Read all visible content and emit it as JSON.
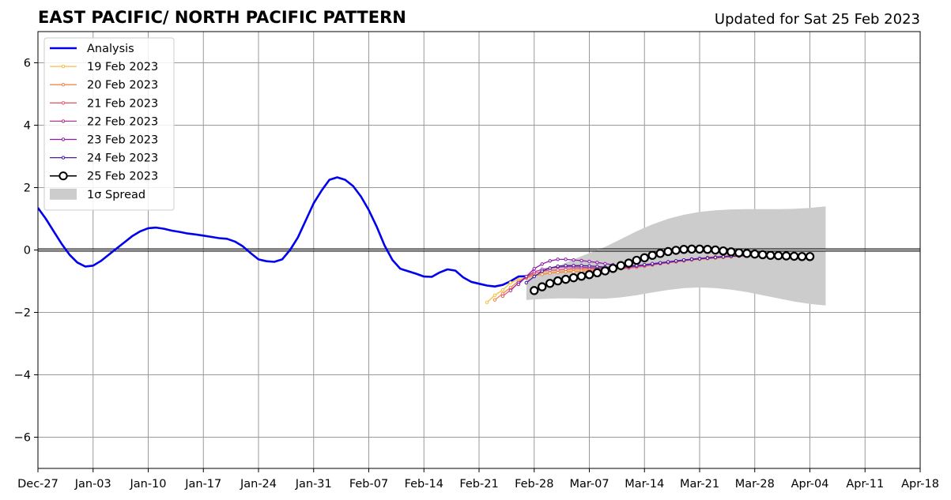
{
  "chart_data": {
    "type": "line",
    "title": "EAST PACIFIC/ NORTH PACIFIC PATTERN",
    "subtitle": "Updated for Sat 25 Feb 2023",
    "xlabel": "",
    "ylabel": "",
    "xlim": [
      "2022-12-27",
      "2023-04-18"
    ],
    "ylim": [
      -7,
      7
    ],
    "grid": true,
    "legend_position": "top-left",
    "x_ticks": [
      {
        "date": "2022-12-27",
        "label": "Dec-27"
      },
      {
        "date": "2023-01-03",
        "label": "Jan-03"
      },
      {
        "date": "2023-01-10",
        "label": "Jan-10"
      },
      {
        "date": "2023-01-17",
        "label": "Jan-17"
      },
      {
        "date": "2023-01-24",
        "label": "Jan-24"
      },
      {
        "date": "2023-01-31",
        "label": "Jan-31"
      },
      {
        "date": "2023-02-07",
        "label": "Feb-07"
      },
      {
        "date": "2023-02-14",
        "label": "Feb-14"
      },
      {
        "date": "2023-02-21",
        "label": "Feb-21"
      },
      {
        "date": "2023-02-28",
        "label": "Feb-28"
      },
      {
        "date": "2023-03-07",
        "label": "Mar-07"
      },
      {
        "date": "2023-03-14",
        "label": "Mar-14"
      },
      {
        "date": "2023-03-21",
        "label": "Mar-21"
      },
      {
        "date": "2023-03-28",
        "label": "Mar-28"
      },
      {
        "date": "2023-04-04",
        "label": "Apr-04"
      },
      {
        "date": "2023-04-11",
        "label": "Apr-11"
      },
      {
        "date": "2023-04-18",
        "label": "Apr-18"
      }
    ],
    "y_ticks": [
      {
        "value": -6,
        "label": "−6"
      },
      {
        "value": -4,
        "label": "−4"
      },
      {
        "value": -2,
        "label": "−2"
      },
      {
        "value": 0,
        "label": "0"
      },
      {
        "value": 2,
        "label": "2"
      },
      {
        "value": 4,
        "label": "4"
      },
      {
        "value": 6,
        "label": "6"
      }
    ],
    "analysis": {
      "name": "Analysis",
      "color": "#0000ee",
      "points": [
        [
          "2022-12-27",
          1.35
        ],
        [
          "2022-12-28",
          1.0
        ],
        [
          "2022-12-29",
          0.6
        ],
        [
          "2022-12-30",
          0.2
        ],
        [
          "2022-12-31",
          -0.15
        ],
        [
          "2023-01-01",
          -0.4
        ],
        [
          "2023-01-02",
          -0.53
        ],
        [
          "2023-01-03",
          -0.5
        ],
        [
          "2023-01-04",
          -0.35
        ],
        [
          "2023-01-05",
          -0.15
        ],
        [
          "2023-01-06",
          0.05
        ],
        [
          "2023-01-07",
          0.25
        ],
        [
          "2023-01-08",
          0.45
        ],
        [
          "2023-01-09",
          0.6
        ],
        [
          "2023-01-10",
          0.7
        ],
        [
          "2023-01-11",
          0.72
        ],
        [
          "2023-01-12",
          0.68
        ],
        [
          "2023-01-13",
          0.62
        ],
        [
          "2023-01-14",
          0.58
        ],
        [
          "2023-01-15",
          0.53
        ],
        [
          "2023-01-16",
          0.5
        ],
        [
          "2023-01-17",
          0.46
        ],
        [
          "2023-01-18",
          0.42
        ],
        [
          "2023-01-19",
          0.38
        ],
        [
          "2023-01-20",
          0.36
        ],
        [
          "2023-01-21",
          0.27
        ],
        [
          "2023-01-22",
          0.12
        ],
        [
          "2023-01-23",
          -0.1
        ],
        [
          "2023-01-24",
          -0.3
        ],
        [
          "2023-01-25",
          -0.36
        ],
        [
          "2023-01-26",
          -0.38
        ],
        [
          "2023-01-27",
          -0.3
        ],
        [
          "2023-01-28",
          0.0
        ],
        [
          "2023-01-29",
          0.4
        ],
        [
          "2023-01-30",
          0.95
        ],
        [
          "2023-01-31",
          1.5
        ],
        [
          "2023-02-01",
          1.9
        ],
        [
          "2023-02-02",
          2.25
        ],
        [
          "2023-02-03",
          2.33
        ],
        [
          "2023-02-04",
          2.25
        ],
        [
          "2023-02-05",
          2.05
        ],
        [
          "2023-02-06",
          1.72
        ],
        [
          "2023-02-07",
          1.28
        ],
        [
          "2023-02-08",
          0.75
        ],
        [
          "2023-02-09",
          0.15
        ],
        [
          "2023-02-10",
          -0.32
        ],
        [
          "2023-02-11",
          -0.6
        ],
        [
          "2023-02-12",
          -0.68
        ],
        [
          "2023-02-13",
          -0.76
        ],
        [
          "2023-02-14",
          -0.85
        ],
        [
          "2023-02-15",
          -0.86
        ],
        [
          "2023-02-16",
          -0.72
        ],
        [
          "2023-02-17",
          -0.62
        ],
        [
          "2023-02-18",
          -0.66
        ],
        [
          "2023-02-19",
          -0.88
        ],
        [
          "2023-02-20",
          -1.02
        ],
        [
          "2023-02-21",
          -1.08
        ],
        [
          "2023-02-22",
          -1.14
        ],
        [
          "2023-02-23",
          -1.17
        ],
        [
          "2023-02-24",
          -1.12
        ],
        [
          "2023-02-25",
          -1.0
        ],
        [
          "2023-02-26",
          -0.85
        ],
        [
          "2023-02-27",
          -0.84
        ]
      ]
    },
    "spread": {
      "name": "1σ Spread",
      "color": "#cccccc",
      "upper": [
        [
          "2023-02-27",
          -0.95
        ],
        [
          "2023-03-01",
          -0.7
        ],
        [
          "2023-03-03",
          -0.52
        ],
        [
          "2023-03-05",
          -0.3
        ],
        [
          "2023-03-07",
          -0.1
        ],
        [
          "2023-03-09",
          0.1
        ],
        [
          "2023-03-11",
          0.35
        ],
        [
          "2023-03-13",
          0.6
        ],
        [
          "2023-03-15",
          0.82
        ],
        [
          "2023-03-17",
          1.0
        ],
        [
          "2023-03-19",
          1.13
        ],
        [
          "2023-03-21",
          1.22
        ],
        [
          "2023-03-23",
          1.27
        ],
        [
          "2023-03-25",
          1.3
        ],
        [
          "2023-03-27",
          1.31
        ],
        [
          "2023-03-29",
          1.31
        ],
        [
          "2023-03-31",
          1.31
        ],
        [
          "2023-04-02",
          1.32
        ],
        [
          "2023-04-04",
          1.35
        ],
        [
          "2023-04-06",
          1.4
        ]
      ],
      "lower": [
        [
          "2023-02-27",
          -1.6
        ],
        [
          "2023-03-01",
          -1.57
        ],
        [
          "2023-03-03",
          -1.55
        ],
        [
          "2023-03-05",
          -1.55
        ],
        [
          "2023-03-07",
          -1.56
        ],
        [
          "2023-03-09",
          -1.56
        ],
        [
          "2023-03-11",
          -1.52
        ],
        [
          "2023-03-13",
          -1.45
        ],
        [
          "2023-03-15",
          -1.36
        ],
        [
          "2023-03-17",
          -1.28
        ],
        [
          "2023-03-19",
          -1.22
        ],
        [
          "2023-03-21",
          -1.2
        ],
        [
          "2023-03-23",
          -1.22
        ],
        [
          "2023-03-25",
          -1.27
        ],
        [
          "2023-03-27",
          -1.35
        ],
        [
          "2023-03-29",
          -1.45
        ],
        [
          "2023-03-31",
          -1.55
        ],
        [
          "2023-04-02",
          -1.65
        ],
        [
          "2023-04-04",
          -1.73
        ],
        [
          "2023-04-06",
          -1.78
        ]
      ]
    },
    "forecasts": [
      {
        "name": "19 Feb 2023",
        "color": "#f5c242",
        "start": "2023-02-22",
        "values": [
          -1.68,
          -1.45,
          -1.28,
          -1.05,
          -0.95,
          -0.88,
          -0.8,
          -0.76,
          -0.72,
          -0.7,
          -0.68,
          -0.66,
          -0.64,
          -0.62,
          -0.6,
          -0.58,
          -0.56,
          -0.54,
          -0.52,
          -0.5,
          -0.48,
          -0.45,
          -0.42,
          -0.4,
          -0.38,
          -0.35,
          -0.32,
          -0.3,
          -0.27,
          -0.24,
          -0.2,
          -0.18,
          -0.16,
          -0.16
        ]
      },
      {
        "name": "20 Feb 2023",
        "color": "#f08a4b",
        "start": "2023-02-23",
        "values": [
          -1.6,
          -1.4,
          -1.2,
          -1.0,
          -0.9,
          -0.82,
          -0.78,
          -0.74,
          -0.72,
          -0.7,
          -0.7,
          -0.68,
          -0.66,
          -0.64,
          -0.62,
          -0.6,
          -0.58,
          -0.55,
          -0.52,
          -0.5,
          -0.47,
          -0.44,
          -0.41,
          -0.38,
          -0.35,
          -0.32,
          -0.3,
          -0.28,
          -0.26,
          -0.24,
          -0.22,
          -0.2,
          -0.18
        ]
      },
      {
        "name": "21 Feb 2023",
        "color": "#e45c70",
        "start": "2023-02-24",
        "values": [
          -1.48,
          -1.28,
          -1.05,
          -0.88,
          -0.75,
          -0.68,
          -0.65,
          -0.64,
          -0.62,
          -0.6,
          -0.6,
          -0.6,
          -0.6,
          -0.6,
          -0.6,
          -0.6,
          -0.58,
          -0.55,
          -0.52,
          -0.48,
          -0.44,
          -0.4,
          -0.36,
          -0.33,
          -0.3,
          -0.27,
          -0.24,
          -0.22,
          -0.2,
          -0.18,
          -0.17,
          -0.16
        ]
      },
      {
        "name": "22 Feb 2023",
        "color": "#b0379a",
        "start": "2023-02-25",
        "values": [
          -1.3,
          -1.05,
          -0.85,
          -0.7,
          -0.62,
          -0.58,
          -0.55,
          -0.54,
          -0.54,
          -0.55,
          -0.56,
          -0.57,
          -0.58,
          -0.58,
          -0.57,
          -0.55,
          -0.52,
          -0.49,
          -0.46,
          -0.43,
          -0.4,
          -0.37,
          -0.34,
          -0.31,
          -0.28,
          -0.26,
          -0.24,
          -0.22,
          -0.2,
          -0.18,
          -0.17
        ]
      },
      {
        "name": "23 Feb 2023",
        "color": "#8c1ca8",
        "start": "2023-02-26",
        "values": [
          -1.1,
          -0.85,
          -0.6,
          -0.45,
          -0.35,
          -0.3,
          -0.3,
          -0.32,
          -0.34,
          -0.37,
          -0.4,
          -0.44,
          -0.47,
          -0.5,
          -0.5,
          -0.5,
          -0.48,
          -0.45,
          -0.42,
          -0.38,
          -0.35,
          -0.32,
          -0.29,
          -0.27,
          -0.25,
          -0.23,
          -0.21,
          -0.2,
          -0.19,
          -0.18
        ]
      },
      {
        "name": "24 Feb 2023",
        "color": "#4a1aa0",
        "start": "2023-02-27",
        "values": [
          -1.05,
          -0.85,
          -0.68,
          -0.58,
          -0.52,
          -0.5,
          -0.5,
          -0.5,
          -0.51,
          -0.53,
          -0.55,
          -0.56,
          -0.55,
          -0.53,
          -0.5,
          -0.47,
          -0.44,
          -0.41,
          -0.38,
          -0.35,
          -0.32,
          -0.3,
          -0.28,
          -0.26,
          -0.24,
          -0.22,
          -0.2,
          -0.19,
          -0.18
        ]
      },
      {
        "name": "25 Feb 2023",
        "color": "#000000",
        "start": "2023-02-28",
        "values": [
          -1.3,
          -1.18,
          -1.07,
          -0.99,
          -0.94,
          -0.89,
          -0.84,
          -0.79,
          -0.73,
          -0.67,
          -0.59,
          -0.5,
          -0.42,
          -0.33,
          -0.25,
          -0.17,
          -0.11,
          -0.05,
          -0.01,
          0.02,
          0.03,
          0.03,
          0.02,
          0.0,
          -0.03,
          -0.06,
          -0.09,
          -0.11,
          -0.13,
          -0.15,
          -0.17,
          -0.18,
          -0.19,
          -0.2,
          -0.21,
          -0.21
        ]
      }
    ]
  }
}
